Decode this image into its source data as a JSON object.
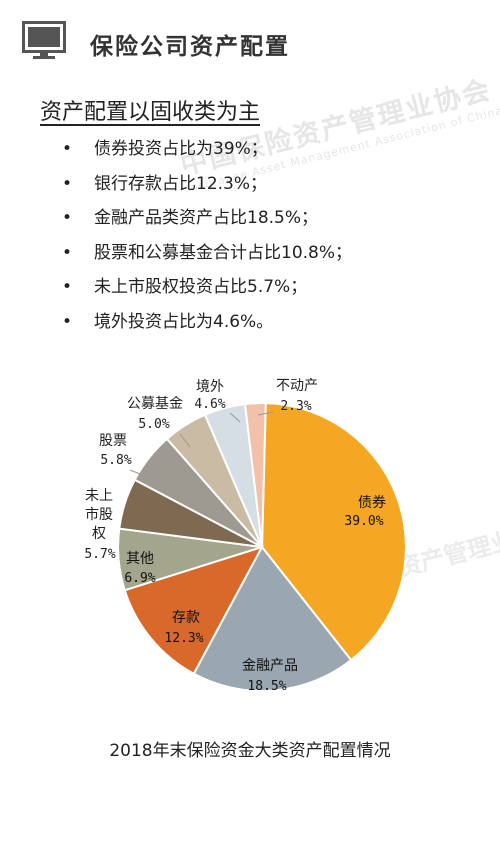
{
  "header": {
    "title": "保险公司资产配置",
    "icon": "monitor-icon"
  },
  "section_title": "资产配置以固收类为主",
  "bullets": [
    "债券投资占比为39%；",
    "银行存款占比12.3%；",
    "金融产品类资产占比18.5%；",
    "股票和公募基金合计占比10.8%；",
    "未上市股权投资占比5.7%；",
    "境外投资占比为4.6%。"
  ],
  "watermark": {
    "line1": "中国保险资产管理业协会",
    "line2": "Insurance Asset Management Association of China"
  },
  "caption": "2018年末保险资金大类资产配置情况",
  "chart_data": {
    "type": "pie",
    "title": "2018年末保险资金大类资产配置情况",
    "slices": [
      {
        "label": "债券",
        "value": 39.0,
        "value_label": "39.0%",
        "color": "#F5A623"
      },
      {
        "label": "金融产品",
        "value": 18.5,
        "value_label": "18.5%",
        "color": "#9AA7B0"
      },
      {
        "label": "存款",
        "value": 12.3,
        "value_label": "12.3%",
        "color": "#D9692B"
      },
      {
        "label": "其他",
        "value": 6.9,
        "value_label": "6.9%",
        "color": "#A3A68C"
      },
      {
        "label": "未上市股权",
        "label_lines": [
          "未上",
          "市股",
          "权"
        ],
        "value": 5.7,
        "value_label": "5.7%",
        "color": "#7E6A50"
      },
      {
        "label": "股票",
        "value": 5.8,
        "value_label": "5.8%",
        "color": "#9E9A92"
      },
      {
        "label": "公募基金",
        "value": 5.0,
        "value_label": "5.0%",
        "color": "#C9BBA4"
      },
      {
        "label": "境外",
        "value": 4.6,
        "value_label": "4.6%",
        "color": "#D5DEE5"
      },
      {
        "label": "不动产",
        "value": 2.3,
        "value_label": "2.3%",
        "color": "#F3C1AA"
      }
    ]
  }
}
